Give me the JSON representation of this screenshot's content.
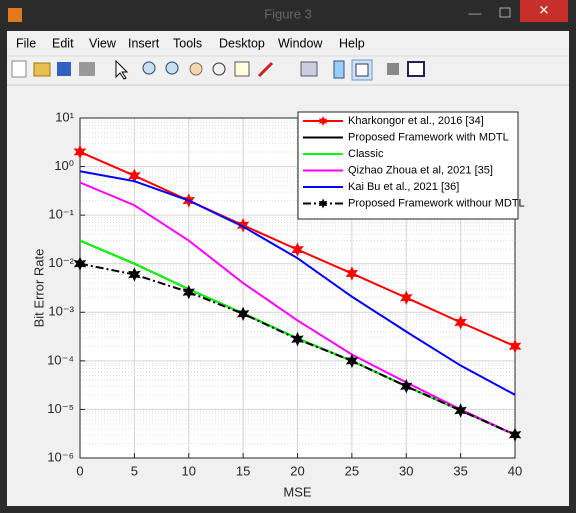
{
  "window": {
    "title": "Figure 3",
    "menu": [
      "File",
      "Edit",
      "View",
      "Insert",
      "Tools",
      "Desktop",
      "Window",
      "Help"
    ]
  },
  "chart_data": {
    "type": "line",
    "xlabel": "MSE",
    "ylabel": "Bit Error Rate",
    "x": [
      0,
      5,
      10,
      15,
      20,
      25,
      30,
      35,
      40
    ],
    "series": [
      {
        "name": "Kharkongor et al., 2016 [34]",
        "color": "#ff0000",
        "marker": "hexagram",
        "dash": "solid",
        "values": [
          2,
          0.65,
          0.2,
          0.062,
          0.0195,
          0.0063,
          0.002,
          0.00062,
          0.0002
        ]
      },
      {
        "name": "Proposed Framework with MDTL",
        "color": "#000000",
        "marker": "none",
        "dash": "solid",
        "values": [
          0.03,
          0.01,
          0.003,
          0.00095,
          0.00029,
          0.0001,
          3e-05,
          9.5e-06,
          3e-06
        ]
      },
      {
        "name": "Classic",
        "color": "#00ff00",
        "marker": "none",
        "dash": "solid",
        "values": [
          0.03,
          0.01,
          0.003,
          0.00095,
          0.00029,
          0.0001,
          3e-05,
          9.5e-06,
          3e-06
        ]
      },
      {
        "name": "Qizhao Zhoua et al, 2021 [35]",
        "color": "#ff00ff",
        "marker": "none",
        "dash": "solid",
        "values": [
          0.47,
          0.16,
          0.03,
          0.004,
          0.00068,
          0.000135,
          3.6e-05,
          1e-05,
          3e-06
        ]
      },
      {
        "name": "Kai Bu et al., 2021 [36]",
        "color": "#0000ff",
        "marker": "none",
        "dash": "solid",
        "values": [
          0.8,
          0.5,
          0.2,
          0.058,
          0.013,
          0.0021,
          0.0004,
          8e-05,
          2e-05
        ]
      },
      {
        "name": "Proposed Framework withour MDTL",
        "color": "#000000",
        "marker": "hexagram",
        "dash": "dashdot",
        "values": [
          0.01,
          0.006,
          0.0026,
          0.00093,
          0.00028,
          0.0001,
          3e-05,
          9.5e-06,
          3e-06
        ]
      }
    ],
    "xlim": [
      0,
      40
    ],
    "xticks": [
      0,
      5,
      10,
      15,
      20,
      25,
      30,
      35,
      40
    ],
    "ylim": [
      1e-06,
      10
    ],
    "yticks": [
      {
        "value": 1e-06,
        "label": "10⁻⁶"
      },
      {
        "value": 1e-05,
        "label": "10⁻⁵"
      },
      {
        "value": 0.0001,
        "label": "10⁻⁴"
      },
      {
        "value": 0.001,
        "label": "10⁻³"
      },
      {
        "value": 0.01,
        "label": "10⁻²"
      },
      {
        "value": 0.1,
        "label": "10⁻¹"
      },
      {
        "value": 1,
        "label": "10⁰"
      },
      {
        "value": 10,
        "label": "10¹"
      }
    ],
    "yscale": "log",
    "grid": true,
    "minor_grid": true,
    "legend": "northeast"
  }
}
